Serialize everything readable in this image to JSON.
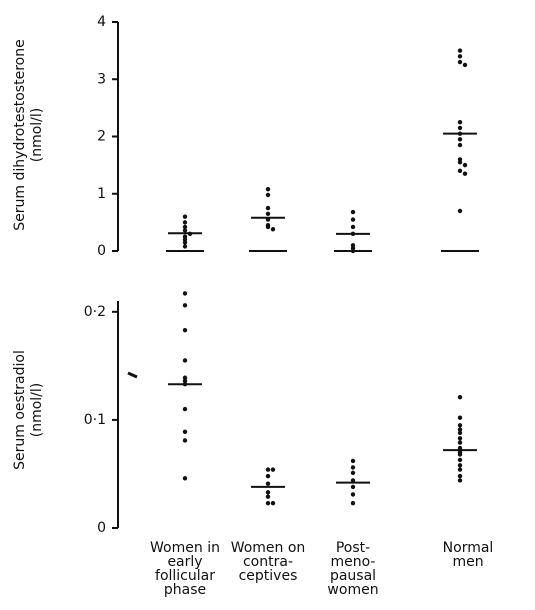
{
  "chart_data": [
    {
      "type": "strip",
      "y_label": [
        "Serum dihydrotestosterone",
        "(nmol/l)"
      ],
      "ylim": [
        0,
        4
      ],
      "yticks": [
        0,
        1,
        2,
        3,
        4
      ],
      "points": [
        [
          0.6,
          0.5,
          0.42,
          0.36,
          0.3,
          0.25,
          0.2,
          0.15,
          0.08
        ],
        [
          1.08,
          0.98,
          0.75,
          0.65,
          0.55,
          0.45,
          0.42,
          0.38
        ],
        [
          0.68,
          0.55,
          0.42,
          0.3,
          0.1,
          0.05,
          0.0
        ],
        [
          3.5,
          3.4,
          3.3,
          3.25,
          2.25,
          2.15,
          2.05,
          1.95,
          1.85,
          1.6,
          1.55,
          1.5,
          1.4,
          1.35,
          0.7
        ]
      ],
      "medians": [
        0.31,
        0.58,
        0.3,
        2.05
      ],
      "color": "#111"
    },
    {
      "type": "strip",
      "y_label": [
        "Serum oestradiol",
        "(nmol/l)"
      ],
      "categories": [
        [
          "Women in",
          "early",
          "follicular",
          "phase"
        ],
        [
          "Women on",
          "contra-",
          "ceptives"
        ],
        [
          "Post-",
          "meno-",
          "pausal",
          "women"
        ],
        [
          "Normal",
          "men"
        ]
      ],
      "ylim": [
        0,
        0.21
      ],
      "yticks": [
        0,
        {
          "value": 0.1,
          "label": "0·1"
        },
        {
          "value": 0.2,
          "label": "0·2"
        }
      ],
      "points": [
        [
          0.217,
          0.206,
          0.183,
          0.155,
          0.139,
          0.136,
          0.133,
          0.11,
          0.089,
          0.081,
          0.046
        ],
        [
          0.054,
          0.054,
          0.048,
          0.041,
          0.033,
          0.029,
          0.023,
          0.023
        ],
        [
          0.062,
          0.056,
          0.051,
          0.044,
          0.038,
          0.031,
          0.023
        ],
        [
          0.121,
          0.102,
          0.095,
          0.091,
          0.088,
          0.083,
          0.079,
          0.074,
          0.07,
          0.068,
          0.063,
          0.058,
          0.054,
          0.048,
          0.044
        ]
      ],
      "medians": [
        0.133,
        0.038,
        0.042,
        0.072
      ],
      "color": "#111"
    }
  ]
}
